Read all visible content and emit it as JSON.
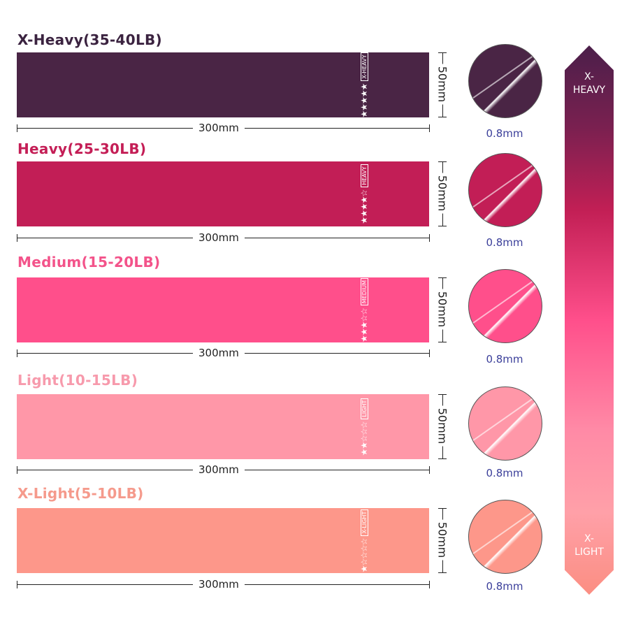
{
  "bands": [
    {
      "title": "X-Heavy(35-40LB)",
      "tag": "X-HEAVY",
      "stars_filled": 5,
      "stars_total": 5,
      "length": "300mm",
      "width": "50mm",
      "thickness": "0.8mm",
      "color": "#4a2545",
      "title_color": "#3b2340"
    },
    {
      "title": "Heavy(25-30LB)",
      "tag": "HEAVY",
      "stars_filled": 4,
      "stars_total": 5,
      "length": "300mm",
      "width": "50mm",
      "thickness": "0.8mm",
      "color": "#c21e56",
      "title_color": "#c41e56"
    },
    {
      "title": "Medium(15-20LB)",
      "tag": "MEDIUM",
      "stars_filled": 3,
      "stars_total": 5,
      "length": "300mm",
      "width": "50mm",
      "thickness": "0.8mm",
      "color": "#ff4f8b",
      "title_color": "#f3538a"
    },
    {
      "title": "Light(10-15LB)",
      "tag": "LIGHT",
      "stars_filled": 2,
      "stars_total": 5,
      "length": "300mm",
      "width": "50mm",
      "thickness": "0.8mm",
      "color": "#ff97a8",
      "title_color": "#f79aac"
    },
    {
      "title": "X-Light(5-10LB)",
      "tag": "X-LIGHT",
      "stars_filled": 1,
      "stars_total": 5,
      "length": "300mm",
      "width": "50mm",
      "thickness": "0.8mm",
      "color": "#fd978a",
      "title_color": "#f59a8c"
    }
  ],
  "scale": {
    "top_label": "X-\nHEAVY",
    "bottom_label": "X-\nLIGHT"
  }
}
